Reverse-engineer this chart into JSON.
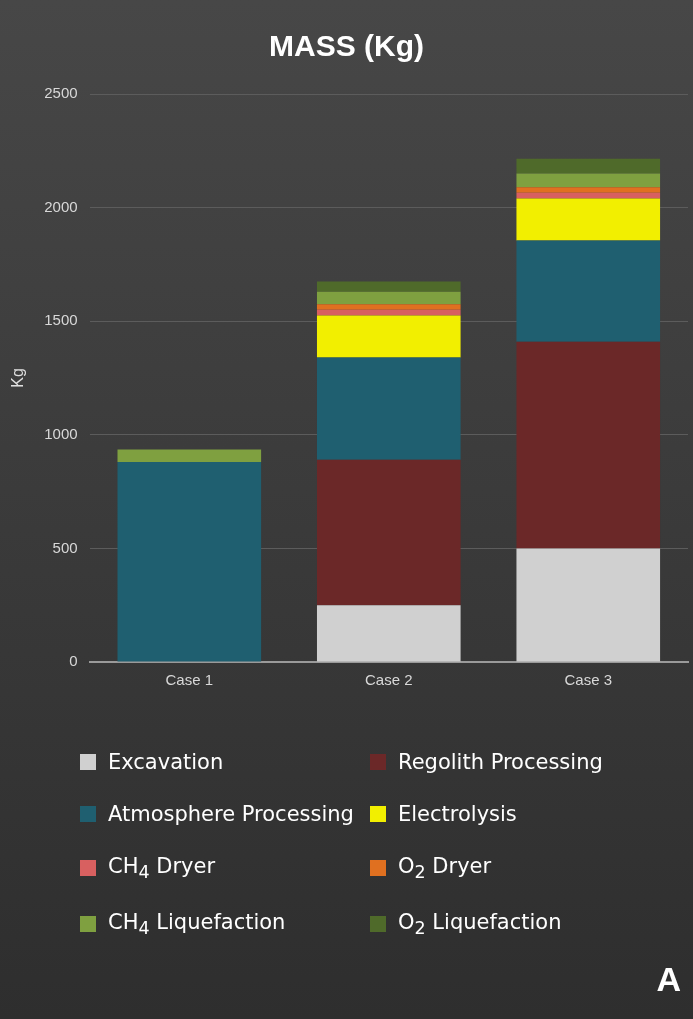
{
  "chart_data": {
    "type": "bar",
    "title": "MASS (Kg)",
    "ylabel": "Kg",
    "categories": [
      "Case 1",
      "Case 2",
      "Case 3"
    ],
    "stacked": true,
    "series": [
      {
        "name": "Excavation",
        "color": "#d0d0d0",
        "values": [
          0,
          250,
          500
        ]
      },
      {
        "name": "Regolith Processing",
        "color": "#6b2828",
        "values": [
          0,
          640,
          910
        ]
      },
      {
        "name": "Atmosphere Processing",
        "color": "#1f5f70",
        "values": [
          880,
          450,
          445
        ]
      },
      {
        "name": "Electrolysis",
        "color": "#f2ef00",
        "values": [
          0,
          185,
          185
        ]
      },
      {
        "name": "CH$_{4}$ Dryer",
        "color": "#d86060",
        "values": [
          0,
          25,
          25
        ]
      },
      {
        "name": "O$_{2}$ Dryer",
        "color": "#e07020",
        "values": [
          0,
          25,
          25
        ]
      },
      {
        "name": "CH$_{4}$ Liquefaction",
        "color": "#7fa040",
        "values": [
          55,
          55,
          60
        ]
      },
      {
        "name": "O$_{2}$ Liquefaction",
        "color": "#4f6a2a",
        "values": [
          0,
          45,
          65
        ]
      }
    ],
    "ylim": [
      0,
      2500
    ],
    "yticks": [
      0,
      500,
      1000,
      1500,
      2000,
      2500
    ],
    "grid": "y",
    "legend": "bottom",
    "annotations": [
      "A"
    ]
  }
}
